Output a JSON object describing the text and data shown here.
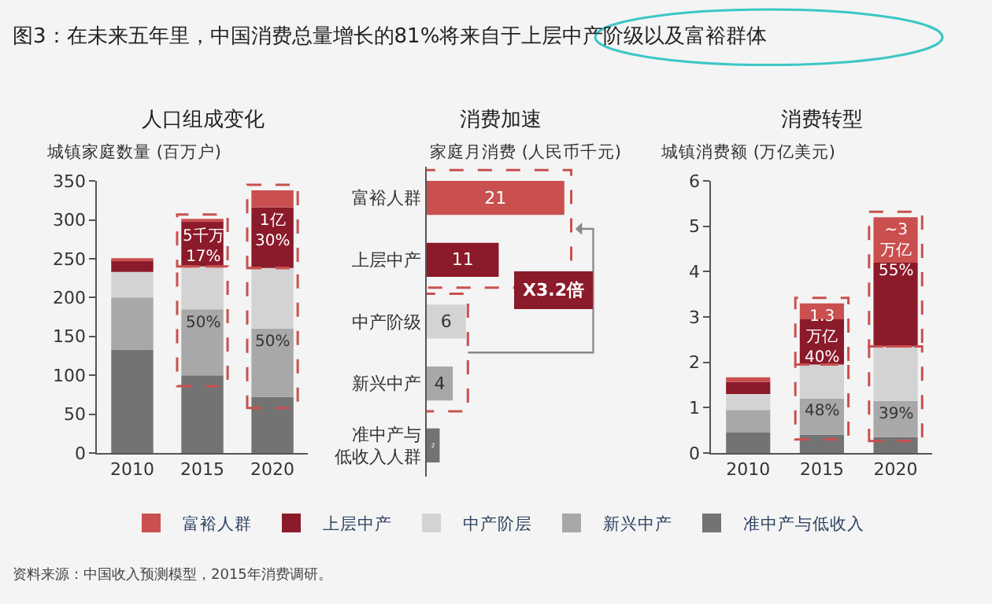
{
  "chart_data": [
    {
      "type": "bar",
      "title": "人口组成变化",
      "ylabel": "城镇家庭数量 (百万户)",
      "categories": [
        "2010",
        "2015",
        "2020"
      ],
      "stacked": true,
      "ylim": [
        0,
        350
      ],
      "yticks": [
        0,
        50,
        100,
        150,
        200,
        250,
        300,
        350
      ],
      "legend": "bottom",
      "grid": false,
      "series": [
        {
          "name": "准中产与低收入",
          "color": "#737373",
          "values": [
            133,
            100,
            72
          ]
        },
        {
          "name": "新兴中产",
          "color": "#a8a8a8",
          "values": [
            67,
            85,
            88
          ]
        },
        {
          "name": "中产阶层",
          "color": "#d3d3d3",
          "values": [
            33,
            55,
            78
          ]
        },
        {
          "name": "上层中产",
          "color": "#8b1a2a",
          "values": [
            15,
            58,
            78
          ]
        },
        {
          "name": "富裕人群",
          "color": "#c9504f",
          "values": [
            2,
            2,
            22
          ]
        }
      ],
      "annotations": [
        "图3：在未来五年里，中国消费总量增长的81%将来自于上层中产阶级以及富裕群体",
        {
          "text": "5千万\n17%",
          "x": "2015",
          "y": 298
        },
        {
          "text": "1亿\n30%",
          "x": "2020",
          "y": 316
        },
        {
          "text": "50%",
          "x": "2015",
          "y": 185
        },
        {
          "text": "50%",
          "x": "2020",
          "y": 160
        },
        "资料来源：中国收入预测模型，2015年消费调研。"
      ]
    },
    {
      "type": "bar",
      "title": "消费加速",
      "ylabel": "家庭月消费 (人民币千元)",
      "orientation": "horizontal",
      "tick_labels": "y",
      "data_labels": true,
      "categories": [
        "富裕人群",
        "上层中产",
        "中产阶级",
        "新兴中产",
        "准中产与低收入人群"
      ],
      "values": [
        21,
        11,
        6,
        4,
        2
      ],
      "colors": [
        "#c9504f",
        "#8b1a2a",
        "#d3d3d3",
        "#a8a8a8",
        "#737373"
      ],
      "annotations": [
        "X3.2倍"
      ]
    },
    {
      "type": "bar",
      "title": "消费转型",
      "ylabel": "城镇消费额 (万亿美元)",
      "categories": [
        "2010",
        "2015",
        "2020"
      ],
      "stacked": true,
      "ylim": [
        0,
        6
      ],
      "yticks": [
        0,
        1,
        2,
        3,
        4,
        5,
        6
      ],
      "legend": "bottom",
      "grid": false,
      "series": [
        {
          "name": "准中产与低收入",
          "color": "#737373",
          "values": [
            0.45,
            0.4,
            0.35
          ]
        },
        {
          "name": "新兴中产",
          "color": "#a8a8a8",
          "values": [
            0.5,
            0.8,
            0.8
          ]
        },
        {
          "name": "中产阶层",
          "color": "#d3d3d3",
          "values": [
            0.35,
            0.75,
            1.2
          ]
        },
        {
          "name": "上层中产",
          "color": "#8b1a2a",
          "values": [
            0.27,
            1.0,
            1.85
          ]
        },
        {
          "name": "富裕人群",
          "color": "#c9504f",
          "values": [
            0.1,
            0.35,
            1.0
          ]
        }
      ],
      "annotations": [
        {
          "text": "1.3\n万亿\n40%",
          "x": "2015",
          "y": 3.3
        },
        {
          "text": "~3\n万亿\n55%",
          "x": "2020",
          "y": 5.2
        },
        {
          "text": "48%",
          "x": "2015",
          "y": 1.2
        },
        {
          "text": "39%",
          "x": "2020",
          "y": 1.15
        }
      ]
    }
  ]
}
